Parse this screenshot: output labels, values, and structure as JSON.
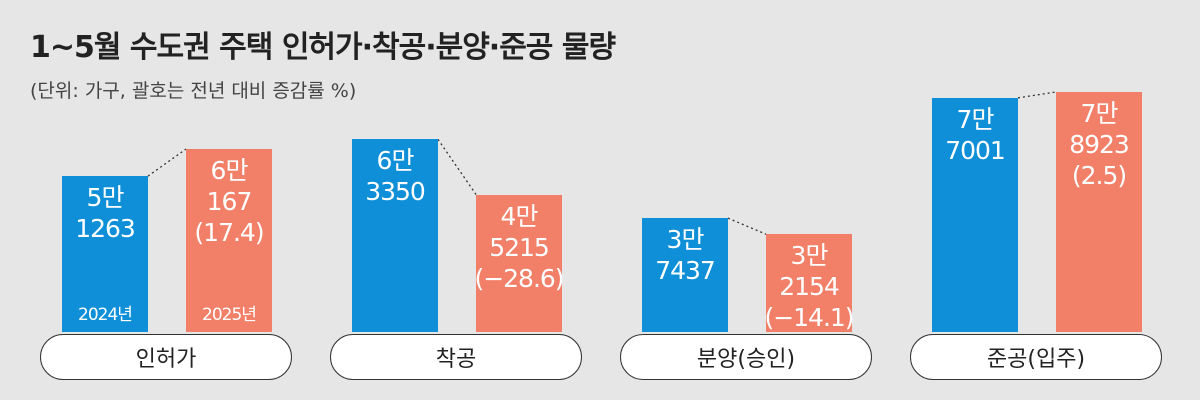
{
  "chart_data": {
    "type": "bar",
    "title": "1~5월 수도권 주택 인허가·착공·분양·준공 물량",
    "subtitle": "(단위: 가구, 괄호는 전년 대비 증감률 %)",
    "categories": [
      "인허가",
      "착공",
      "분양(승인)",
      "준공(입주)"
    ],
    "series": [
      {
        "name": "2024년",
        "color": "#0e8fd8",
        "values": [
          51263,
          63350,
          37437,
          77001
        ],
        "value_labels": [
          "5만\n1263",
          "6만\n3350",
          "3만\n7437",
          "7만\n7001"
        ]
      },
      {
        "name": "2025년",
        "color": "#f27f68",
        "values": [
          60167,
          45215,
          32154,
          78923
        ],
        "value_labels": [
          "6만\n167",
          "4만\n5215",
          "3만\n2154",
          "7만\n8923"
        ]
      }
    ],
    "change": {
      "values": [
        17.4,
        -28.6,
        -14.1,
        2.5
      ],
      "value_labels": [
        "(17.4)",
        "(−28.6)",
        "(−14.1)",
        "(2.5)"
      ]
    }
  }
}
